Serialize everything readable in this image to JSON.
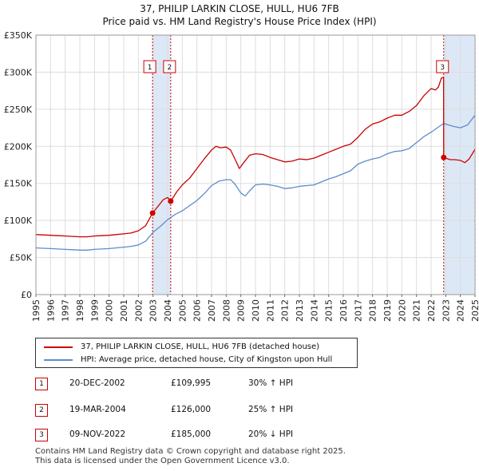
{
  "title": {
    "line1": "37, PHILIP LARKIN CLOSE, HULL, HU6 7FB",
    "line2": "Price paid vs. HM Land Registry's House Price Index (HPI)"
  },
  "legend": {
    "property_label": "37, PHILIP LARKIN CLOSE, HULL, HU6 7FB (detached house)",
    "hpi_label": "HPI: Average price, detached house, City of Kingston upon Hull"
  },
  "sales": [
    {
      "num": "1",
      "date": "20-DEC-2002",
      "price": "£109,995",
      "hpi": "30% ↑ HPI"
    },
    {
      "num": "2",
      "date": "19-MAR-2004",
      "price": "£126,000",
      "hpi": "25% ↑ HPI"
    },
    {
      "num": "3",
      "date": "09-NOV-2022",
      "price": "£185,000",
      "hpi": "20% ↓ HPI"
    }
  ],
  "footer": {
    "line1": "Contains HM Land Registry data © Crown copyright and database right 2025.",
    "line2": "This data is licensed under the Open Government Licence v3.0."
  },
  "colors": {
    "property": "#cc0000",
    "hpi": "#5b8ccc",
    "shade": "#dde8f6",
    "grid": "#dddddd"
  },
  "chart_data": {
    "type": "line",
    "title": "37, PHILIP LARKIN CLOSE, HULL, HU6 7FB — Price paid vs. HM Land Registry's House Price Index (HPI)",
    "xlabel": "",
    "ylabel": "",
    "xlim": [
      1995,
      2025
    ],
    "ylim": [
      0,
      350000
    ],
    "y_ticks": [
      {
        "value": 0,
        "label": "£0"
      },
      {
        "value": 50000,
        "label": "£50K"
      },
      {
        "value": 100000,
        "label": "£100K"
      },
      {
        "value": 150000,
        "label": "£150K"
      },
      {
        "value": 200000,
        "label": "£200K"
      },
      {
        "value": 250000,
        "label": "£250K"
      },
      {
        "value": 300000,
        "label": "£300K"
      },
      {
        "value": 350000,
        "label": "£350K"
      }
    ],
    "x_ticks": [
      "1995",
      "1996",
      "1997",
      "1998",
      "1999",
      "2000",
      "2001",
      "2002",
      "2003",
      "2004",
      "2005",
      "2006",
      "2007",
      "2008",
      "2009",
      "2010",
      "2011",
      "2012",
      "2013",
      "2014",
      "2015",
      "2016",
      "2017",
      "2018",
      "2019",
      "2020",
      "2021",
      "2022",
      "2023",
      "2024",
      "2025"
    ],
    "grid": true,
    "shaded_regions": [
      {
        "from": 2002.97,
        "to": 2004.21
      },
      {
        "from": 2022.86,
        "to": 2024.95
      }
    ],
    "hatched_region": {
      "from": 2024.95,
      "to": 2025.0
    },
    "series": [
      {
        "name": "37, PHILIP LARKIN CLOSE, HULL, HU6 7FB (detached house)",
        "x": [
          1995.0,
          1995.5,
          1996.0,
          1996.5,
          1997.0,
          1997.5,
          1998.0,
          1998.5,
          1999.0,
          1999.5,
          2000.0,
          2000.5,
          2001.0,
          2001.5,
          2002.0,
          2002.5,
          2002.97,
          2003.3,
          2003.7,
          2004.0,
          2004.21,
          2004.6,
          2005.0,
          2005.5,
          2006.0,
          2006.5,
          2007.0,
          2007.3,
          2007.6,
          2008.0,
          2008.3,
          2008.6,
          2008.9,
          2009.2,
          2009.6,
          2010.0,
          2010.5,
          2011.0,
          2011.5,
          2012.0,
          2012.5,
          2013.0,
          2013.5,
          2014.0,
          2014.5,
          2015.0,
          2015.5,
          2016.0,
          2016.5,
          2017.0,
          2017.5,
          2018.0,
          2018.5,
          2019.0,
          2019.5,
          2020.0,
          2020.5,
          2021.0,
          2021.5,
          2022.0,
          2022.3,
          2022.5,
          2022.7,
          2022.85,
          2022.86,
          2023.0,
          2023.3,
          2023.6,
          2024.0,
          2024.3,
          2024.6,
          2025.0
        ],
        "values": [
          81000,
          80500,
          80000,
          79500,
          79000,
          78500,
          78000,
          78000,
          79000,
          79500,
          80000,
          81000,
          82000,
          83000,
          86000,
          93000,
          109995,
          118000,
          128000,
          131000,
          126000,
          138000,
          148000,
          157000,
          170000,
          183000,
          195000,
          200000,
          198000,
          199000,
          195000,
          183000,
          170000,
          178000,
          188000,
          190000,
          189000,
          185000,
          182000,
          179000,
          180000,
          183000,
          182000,
          184000,
          188000,
          192000,
          196000,
          200000,
          203000,
          212000,
          223000,
          230000,
          233000,
          238000,
          242000,
          242000,
          247000,
          255000,
          268000,
          278000,
          276000,
          280000,
          292000,
          293000,
          185000,
          184000,
          182000,
          182000,
          181000,
          178000,
          183000,
          196000
        ]
      },
      {
        "name": "HPI: Average price, detached house, City of Kingston upon Hull",
        "x": [
          1995.0,
          1995.5,
          1996.0,
          1996.5,
          1997.0,
          1997.5,
          1998.0,
          1998.5,
          1999.0,
          1999.5,
          2000.0,
          2000.5,
          2001.0,
          2001.5,
          2002.0,
          2002.5,
          2003.0,
          2003.5,
          2004.0,
          2004.5,
          2005.0,
          2005.5,
          2006.0,
          2006.5,
          2007.0,
          2007.5,
          2008.0,
          2008.3,
          2008.6,
          2009.0,
          2009.3,
          2009.6,
          2010.0,
          2010.5,
          2011.0,
          2011.5,
          2012.0,
          2012.5,
          2013.0,
          2013.5,
          2014.0,
          2014.5,
          2015.0,
          2015.5,
          2016.0,
          2016.5,
          2017.0,
          2017.5,
          2018.0,
          2018.5,
          2019.0,
          2019.5,
          2020.0,
          2020.5,
          2021.0,
          2021.5,
          2022.0,
          2022.5,
          2022.86,
          2023.0,
          2023.5,
          2024.0,
          2024.5,
          2025.0
        ],
        "values": [
          63000,
          62500,
          62000,
          61500,
          61000,
          60500,
          60000,
          60000,
          61000,
          61500,
          62000,
          63000,
          64000,
          65000,
          67000,
          72000,
          84000,
          92000,
          101000,
          108000,
          113000,
          120000,
          127000,
          136000,
          147000,
          153000,
          155000,
          155000,
          149000,
          137000,
          133000,
          140000,
          148000,
          149000,
          148000,
          146000,
          143000,
          144000,
          146000,
          147000,
          148000,
          152000,
          156000,
          159000,
          163000,
          167000,
          176000,
          180000,
          183000,
          185000,
          190000,
          193000,
          194000,
          197000,
          205000,
          213000,
          219000,
          226000,
          231000,
          230000,
          227000,
          225000,
          229000,
          242000
        ]
      }
    ],
    "markers": [
      {
        "label": "1",
        "x": 2002.97,
        "y": 109995
      },
      {
        "label": "2",
        "x": 2004.21,
        "y": 126000
      },
      {
        "label": "3",
        "x": 2022.86,
        "y": 185000
      }
    ]
  }
}
